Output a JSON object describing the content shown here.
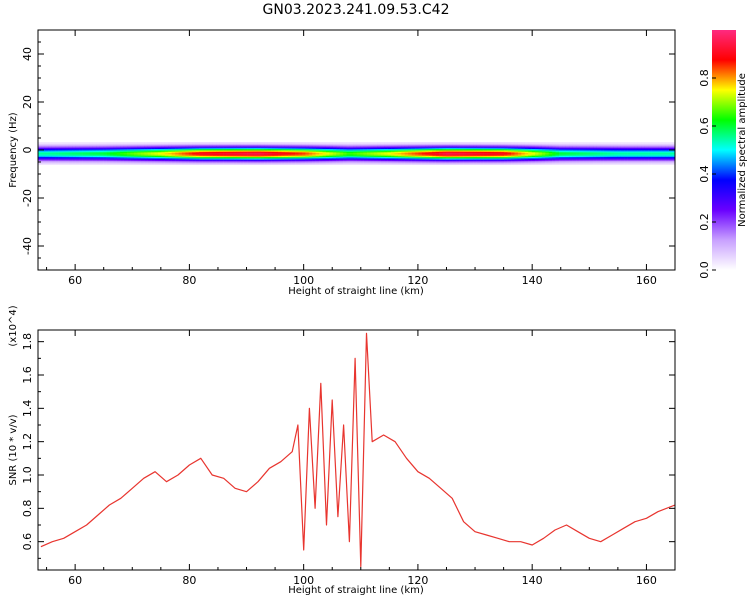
{
  "title": "GN03.2023.241.09.53.C42",
  "chart_data": [
    {
      "type": "heatmap",
      "xlabel": "Height of straight line (km)",
      "ylabel": "Frequency (Hz)",
      "xlim": [
        53.5,
        165
      ],
      "ylim": [
        -50,
        50
      ],
      "xticks": [
        60,
        80,
        100,
        120,
        140,
        160
      ],
      "yticks": [
        -40,
        -20,
        0,
        20,
        40
      ],
      "colorbar": {
        "label": "Normalized spectral amplitude",
        "range": [
          0,
          1
        ],
        "ticks": [
          0.0,
          0.2,
          0.4,
          0.6,
          0.8
        ],
        "colormap": [
          "#ffffff",
          "#c8a0ff",
          "#6a00ff",
          "#0000ff",
          "#00ffff",
          "#00ff00",
          "#ffff00",
          "#ff0000",
          "#ff2a80"
        ]
      },
      "band": {
        "center_frequency": -1.5,
        "half_width_hz": 2.5,
        "peak_amplitude_profile": [
          {
            "height": 54,
            "amp": 0.55
          },
          {
            "height": 65,
            "amp": 0.6
          },
          {
            "height": 75,
            "amp": 0.75
          },
          {
            "height": 82,
            "amp": 0.9
          },
          {
            "height": 92,
            "amp": 0.95
          },
          {
            "height": 100,
            "amp": 0.85
          },
          {
            "height": 108,
            "amp": 0.65
          },
          {
            "height": 115,
            "amp": 0.75
          },
          {
            "height": 125,
            "amp": 0.95
          },
          {
            "height": 135,
            "amp": 0.9
          },
          {
            "height": 145,
            "amp": 0.6
          },
          {
            "height": 155,
            "amp": 0.55
          },
          {
            "height": 165,
            "amp": 0.55
          }
        ]
      }
    },
    {
      "type": "line",
      "xlabel": "Height of straight line (km)",
      "ylabel": "SNR (10 * v/v)",
      "yscale_label": "(x10^4)",
      "xlim": [
        53.5,
        165
      ],
      "ylim": [
        0.43,
        1.87
      ],
      "xticks": [
        60,
        80,
        100,
        120,
        140,
        160
      ],
      "yticks": [
        0.6,
        0.8,
        1.0,
        1.2,
        1.4,
        1.6,
        1.8
      ],
      "color": "#e8352f",
      "series": [
        {
          "x": [
            54,
            56,
            58,
            60,
            62,
            64,
            66,
            68,
            70,
            72,
            74,
            76,
            78,
            80,
            82,
            84,
            86,
            88,
            90,
            92,
            94,
            96,
            98,
            99,
            100,
            101,
            102,
            103,
            104,
            105,
            106,
            107,
            108,
            109,
            110,
            111,
            112,
            114,
            116,
            118,
            120,
            122,
            124,
            126,
            128,
            130,
            132,
            134,
            136,
            138,
            140,
            142,
            144,
            146,
            148,
            150,
            152,
            154,
            156,
            158,
            160,
            162,
            165
          ],
          "y": [
            0.57,
            0.6,
            0.62,
            0.66,
            0.7,
            0.76,
            0.82,
            0.86,
            0.92,
            0.98,
            1.02,
            0.96,
            1.0,
            1.06,
            1.1,
            1.0,
            0.98,
            0.92,
            0.9,
            0.96,
            1.04,
            1.08,
            1.14,
            1.3,
            0.55,
            1.4,
            0.8,
            1.55,
            0.7,
            1.45,
            0.75,
            1.3,
            0.6,
            1.7,
            0.45,
            1.85,
            1.2,
            1.24,
            1.2,
            1.1,
            1.02,
            0.98,
            0.92,
            0.86,
            0.72,
            0.66,
            0.64,
            0.62,
            0.6,
            0.6,
            0.58,
            0.62,
            0.67,
            0.7,
            0.66,
            0.62,
            0.6,
            0.64,
            0.68,
            0.72,
            0.74,
            0.78,
            0.82
          ]
        }
      ]
    }
  ]
}
